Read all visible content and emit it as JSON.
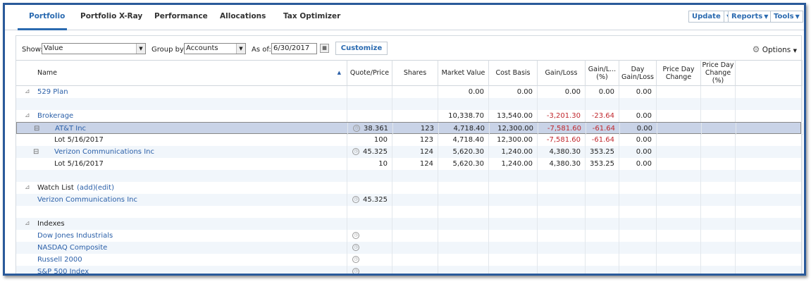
{
  "tabs": [
    "Portfolio",
    "Portfolio X-Ray",
    "Performance",
    "Allocations",
    "Tax Optimizer"
  ],
  "active_tab": 0,
  "top_buttons": {
    "update": "Update",
    "reports": "Reports",
    "tools": "Tools"
  },
  "toolbar": {
    "show_label": "Show:",
    "show_value": "Value",
    "group_label": "Group by:",
    "group_value": "Accounts",
    "asof_label": "As of:",
    "asof_value": "6/30/2017",
    "customize": "Customize",
    "options": "Options"
  },
  "columns": [
    "Name",
    "Quote/Price",
    "Shares",
    "Market Value",
    "Cost Basis",
    "Gain/Loss",
    "Gain/L... (%)",
    "Day Gain/Loss",
    "Price Day Change",
    "Price Day Change (%)"
  ],
  "accent": "#2a6ab0",
  "negative_color": "#c0272d",
  "rows": [
    {
      "type": "group",
      "name": "529 Plan",
      "link": true,
      "values": [
        "",
        "",
        "0.00",
        "0.00",
        "0.00",
        "0.00",
        "0.00"
      ]
    },
    {
      "type": "blank"
    },
    {
      "type": "group",
      "name": "Brokerage",
      "link": true,
      "values": [
        "",
        "",
        "10,338.70",
        "13,540.00",
        "-3,201.30",
        "-23.64",
        "0.00"
      ]
    },
    {
      "type": "holding",
      "name": "AT&T Inc",
      "selected": true,
      "clock": true,
      "values": [
        "38.361",
        "123",
        "4,718.40",
        "12,300.00",
        "-7,581.60",
        "-61.64",
        "0.00"
      ]
    },
    {
      "type": "lot",
      "name": "Lot 5/16/2017",
      "values": [
        "100",
        "123",
        "4,718.40",
        "12,300.00",
        "-7,581.60",
        "-61.64",
        "0.00"
      ]
    },
    {
      "type": "holding",
      "name": "Verizon Communications Inc",
      "clock": true,
      "values": [
        "45.325",
        "124",
        "5,620.30",
        "1,240.00",
        "4,380.30",
        "353.25",
        "0.00"
      ]
    },
    {
      "type": "lot",
      "name": "Lot 5/16/2017",
      "values": [
        "10",
        "124",
        "5,620.30",
        "1,240.00",
        "4,380.30",
        "353.25",
        "0.00"
      ]
    },
    {
      "type": "blank"
    },
    {
      "type": "group",
      "name": "Watch List",
      "links": [
        "(add)",
        "(edit)"
      ],
      "values": []
    },
    {
      "type": "item",
      "name": "Verizon Communications Inc",
      "clock": true,
      "values": [
        "45.325"
      ]
    },
    {
      "type": "blank"
    },
    {
      "type": "group",
      "name": "Indexes",
      "values": []
    },
    {
      "type": "item",
      "name": "Dow Jones Industrials",
      "clock": true,
      "values": []
    },
    {
      "type": "item",
      "name": "NASDAQ Composite",
      "clock": true,
      "values": []
    },
    {
      "type": "item",
      "name": "Russell 2000",
      "clock": true,
      "values": []
    },
    {
      "type": "item",
      "name": "S&P 500 Index",
      "clock": true,
      "values": []
    }
  ]
}
